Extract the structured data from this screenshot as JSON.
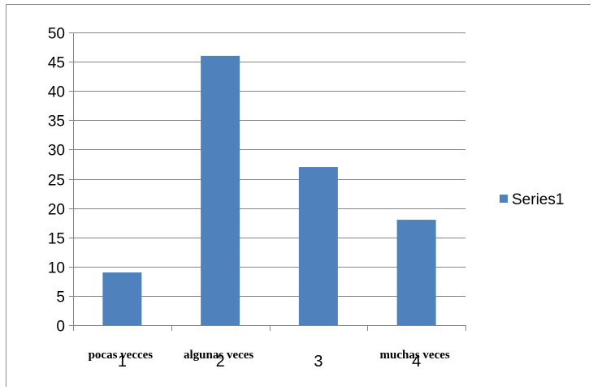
{
  "chart_data": {
    "type": "bar",
    "categories": [
      "1",
      "2",
      "3",
      "4"
    ],
    "category_text_labels": [
      "pocas vecces",
      "algunas veces",
      "",
      "muchas veces"
    ],
    "series": [
      {
        "name": "Series1",
        "values": [
          9,
          46,
          27,
          18
        ],
        "color": "#4f81bd"
      }
    ],
    "ylim": [
      0,
      50
    ],
    "y_ticks": [
      "0",
      "5",
      "10",
      "15",
      "20",
      "25",
      "30",
      "35",
      "40",
      "45",
      "50"
    ],
    "grid": true,
    "legend_position": "right",
    "gridline_color": "#868686",
    "axis_color": "#868686"
  }
}
